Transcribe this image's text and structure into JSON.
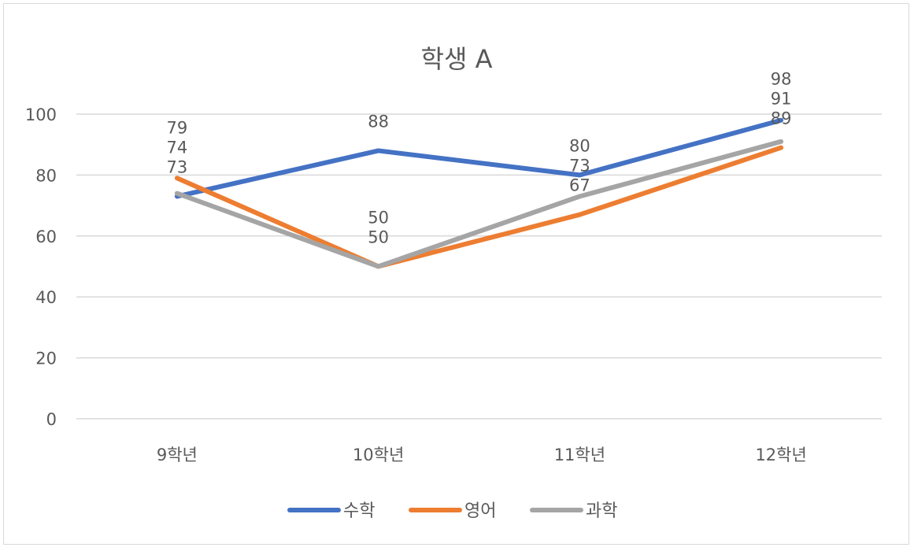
{
  "chart_data": {
    "type": "line",
    "title": "학생 A",
    "categories": [
      "9학년",
      "10학년",
      "11학년",
      "12학년"
    ],
    "series": [
      {
        "name": "수학",
        "values": [
          73,
          88,
          80,
          98
        ],
        "color": "#4472C4"
      },
      {
        "name": "영어",
        "values": [
          79,
          50,
          67,
          89
        ],
        "color": "#ED7D31"
      },
      {
        "name": "과학",
        "values": [
          74,
          50,
          73,
          91
        ],
        "color": "#A5A5A5"
      }
    ],
    "ylim": [
      0,
      100
    ],
    "yticks": [
      0,
      20,
      40,
      60,
      80,
      100
    ],
    "grid": true,
    "data_labels": true,
    "legend": "bottom"
  }
}
